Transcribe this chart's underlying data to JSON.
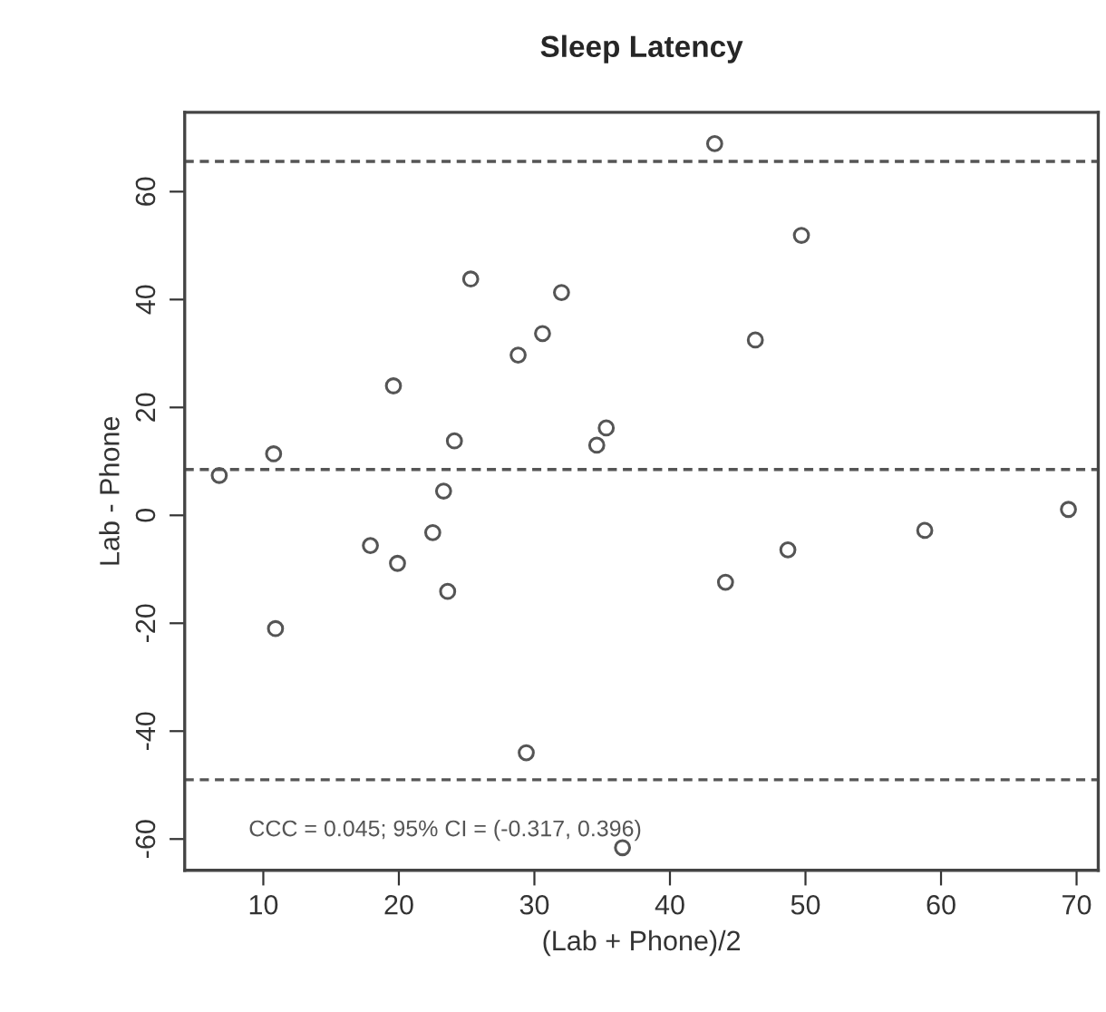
{
  "chart_data": {
    "type": "scatter",
    "title": "Sleep Latency",
    "xlabel": "(Lab + Phone)/2",
    "ylabel": "Lab - Phone",
    "x": [
      6.75,
      10.76,
      19.6,
      25.3,
      28.8,
      30.6,
      32.0,
      24.1,
      23.3,
      22.5,
      17.9,
      34.6,
      35.3,
      19.9,
      23.6,
      10.9,
      29.4,
      36.5,
      43.3,
      49.7,
      46.3,
      44.1,
      48.7,
      58.8,
      69.4
    ],
    "series": [
      {
        "color": "#555555",
        "values": [
          7.4,
          11.4,
          24.0,
          43.8,
          29.7,
          33.7,
          41.3,
          13.8,
          4.5,
          -3.2,
          -5.6,
          13.0,
          16.2,
          -8.9,
          -14.1,
          -21.0,
          -44.0,
          -61.6,
          68.9,
          51.9,
          32.5,
          -12.4,
          -6.4,
          -2.8,
          1.1
        ]
      }
    ],
    "xlim": [
      4.2,
      71.6
    ],
    "ylim": [
      -65.8,
      74.7
    ],
    "xticks": [
      10,
      20,
      30,
      40,
      50,
      60,
      70
    ],
    "yticks": [
      -60,
      -40,
      -20,
      0,
      20,
      40,
      60
    ],
    "ref_lines": [
      {
        "axis": "y",
        "value": 65.6,
        "line_style": "dashed",
        "color": "#555555"
      },
      {
        "axis": "y",
        "value": 8.5,
        "line_style": "dashed",
        "color": "#555555"
      },
      {
        "axis": "y",
        "value": -49.0,
        "line_style": "dashed",
        "color": "#555555"
      }
    ],
    "annotations": [
      "CCC = 0.045; 95% CI = (-0.317, 0.396)"
    ],
    "marker": "circle",
    "grid": false,
    "legend": false
  }
}
